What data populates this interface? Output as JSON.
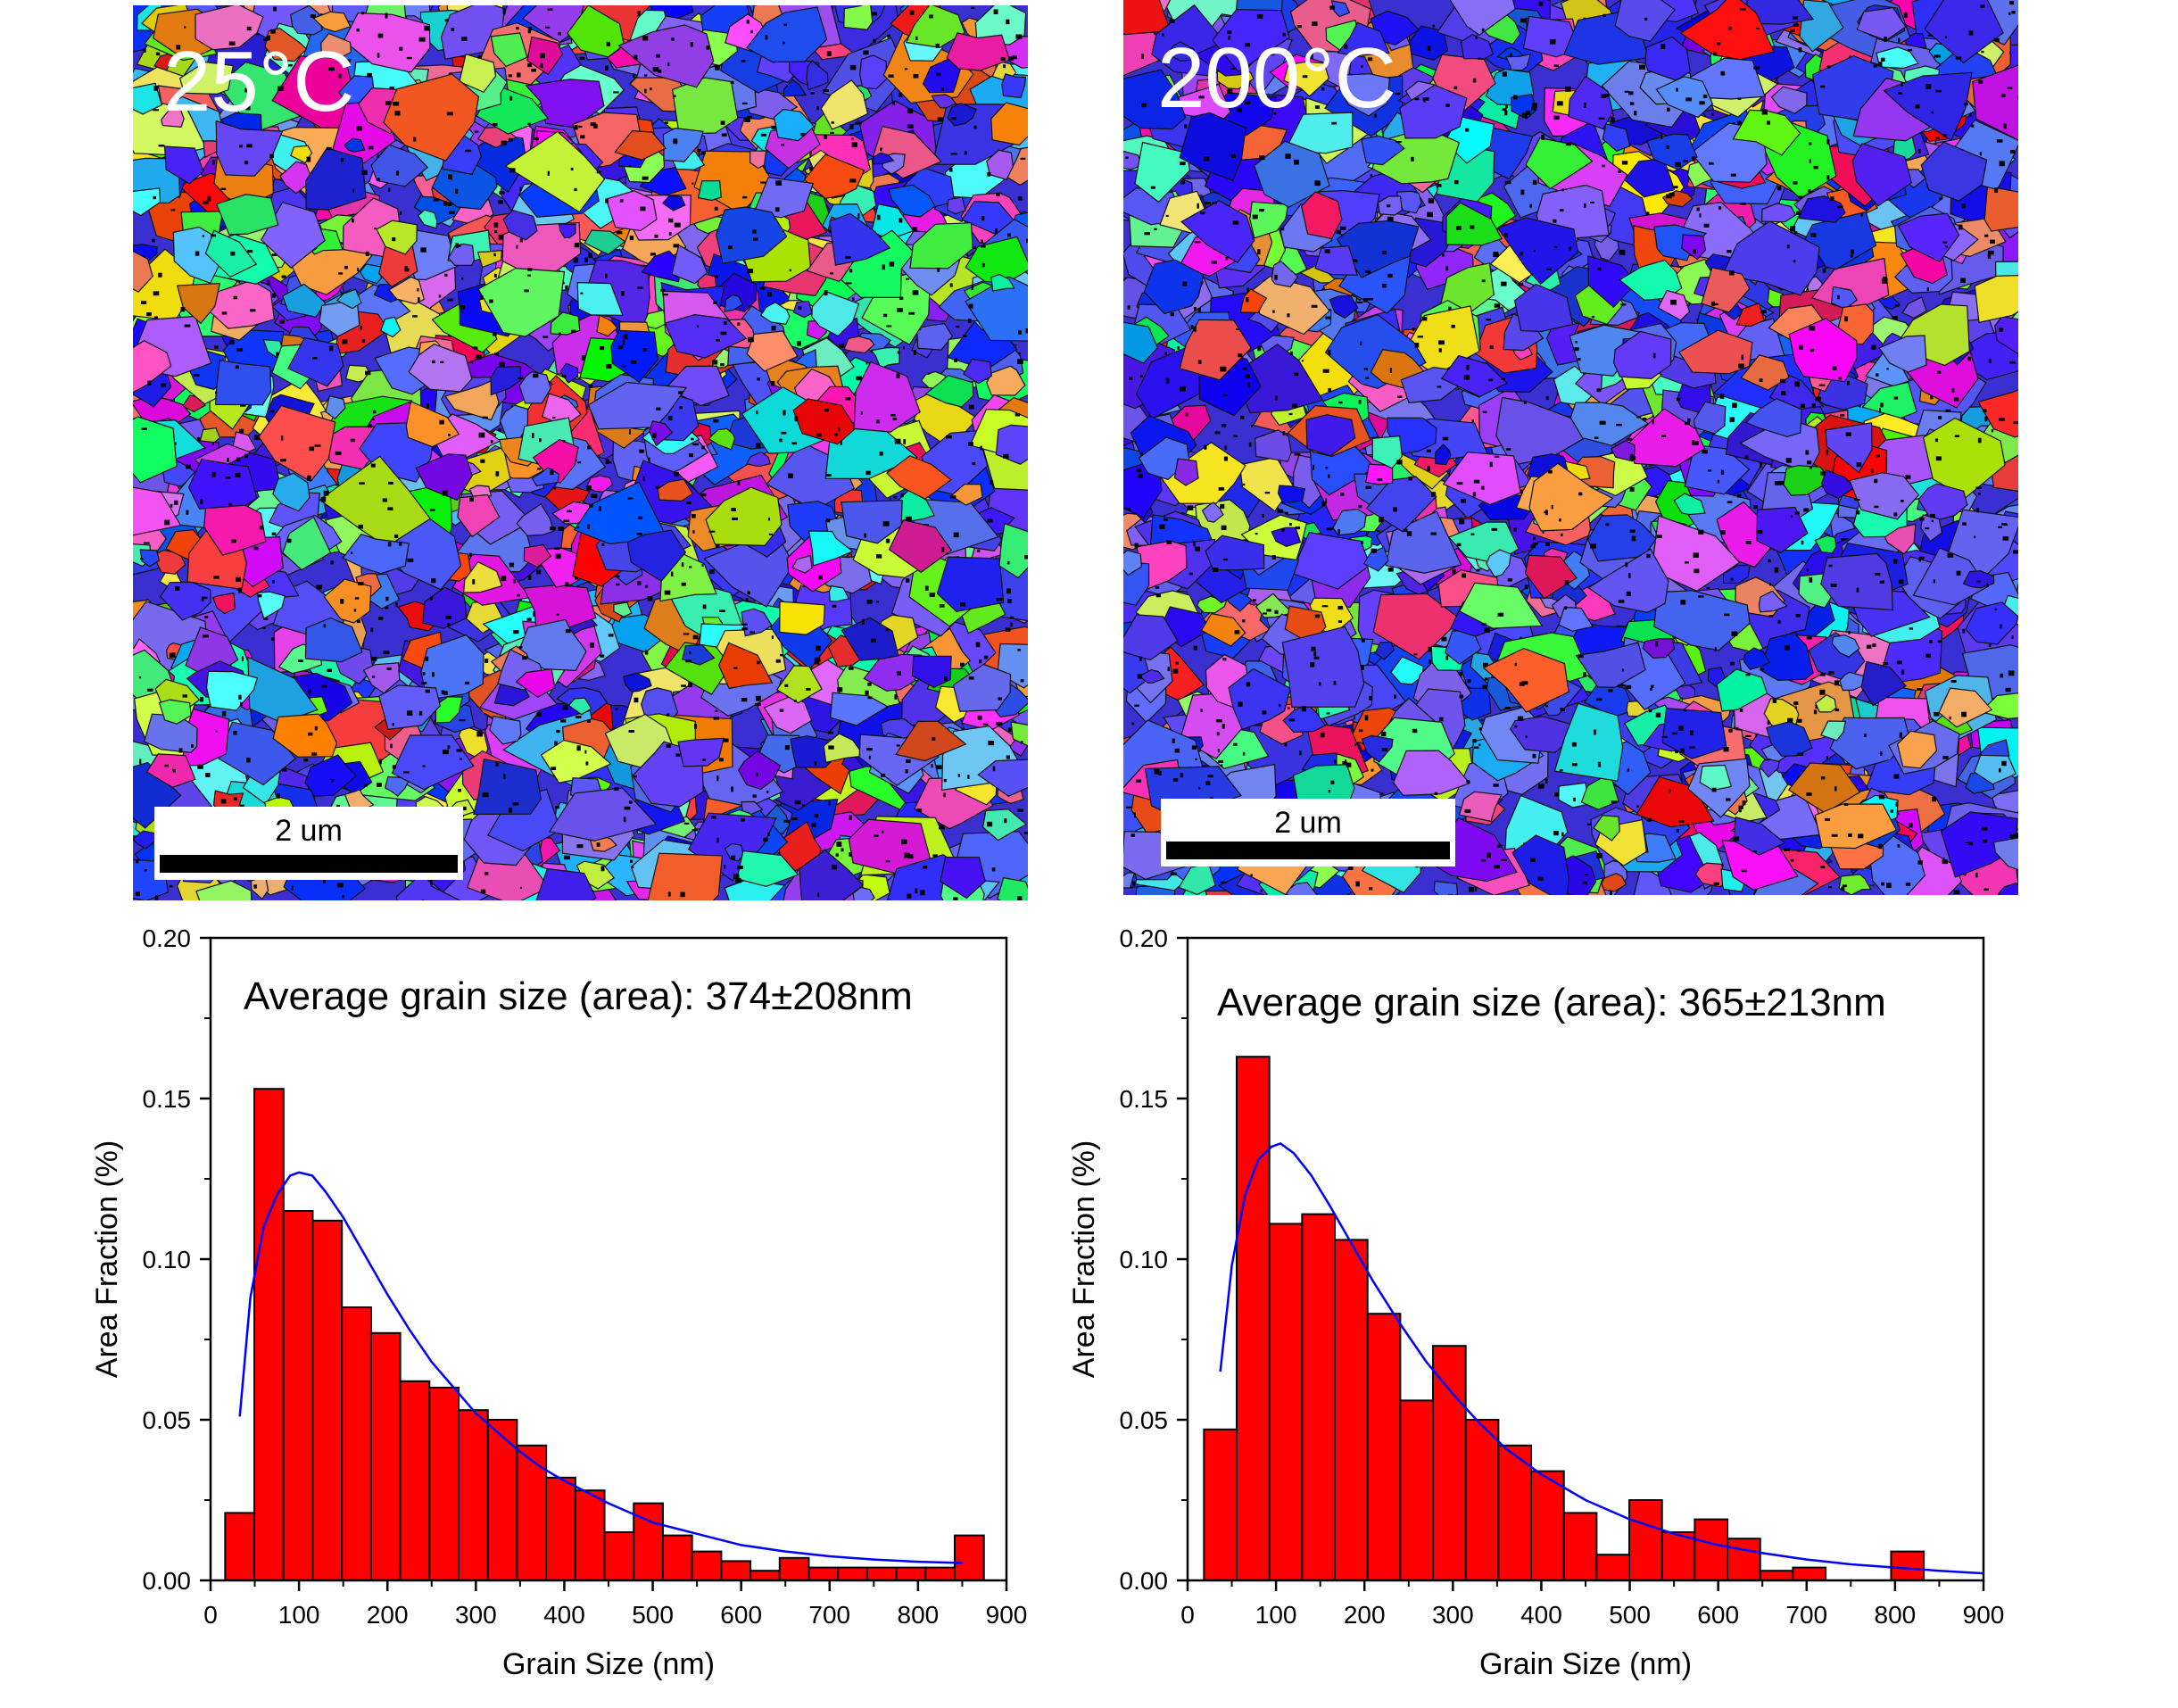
{
  "panels": [
    {
      "id": "a",
      "map_label": "25°C",
      "scalebar_label": "2 um"
    },
    {
      "id": "b",
      "map_label": "200°C",
      "scalebar_label": "2 um"
    }
  ],
  "colors": {
    "bar": "#ff0000",
    "bar_edge": "#000000",
    "fit": "#0000ff",
    "map_label": "#ffffff"
  },
  "chart_data": [
    {
      "type": "bar",
      "annotation": "Average grain size (area): 374±208nm",
      "xlabel": "Grain Size (nm)",
      "ylabel": "Area Fraction (%)",
      "xlim": [
        0,
        900
      ],
      "ylim": [
        0,
        0.2
      ],
      "xticks": [
        "0",
        "100",
        "200",
        "300",
        "400",
        "500",
        "600",
        "700",
        "800",
        "900"
      ],
      "yticks": [
        "0.00",
        "0.05",
        "0.10",
        "0.15",
        "0.20"
      ],
      "bin_width": 33,
      "bins": [
        {
          "x": 33,
          "y": 0.021
        },
        {
          "x": 66,
          "y": 0.153
        },
        {
          "x": 99,
          "y": 0.115
        },
        {
          "x": 132,
          "y": 0.112
        },
        {
          "x": 165,
          "y": 0.085
        },
        {
          "x": 198,
          "y": 0.077
        },
        {
          "x": 231,
          "y": 0.062
        },
        {
          "x": 264,
          "y": 0.06
        },
        {
          "x": 297,
          "y": 0.053
        },
        {
          "x": 330,
          "y": 0.05
        },
        {
          "x": 363,
          "y": 0.042
        },
        {
          "x": 396,
          "y": 0.032
        },
        {
          "x": 429,
          "y": 0.028
        },
        {
          "x": 462,
          "y": 0.015
        },
        {
          "x": 495,
          "y": 0.024
        },
        {
          "x": 528,
          "y": 0.014
        },
        {
          "x": 561,
          "y": 0.009
        },
        {
          "x": 594,
          "y": 0.006
        },
        {
          "x": 627,
          "y": 0.003
        },
        {
          "x": 660,
          "y": 0.007
        },
        {
          "x": 693,
          "y": 0.004
        },
        {
          "x": 726,
          "y": 0.004
        },
        {
          "x": 759,
          "y": 0.004
        },
        {
          "x": 792,
          "y": 0.004
        },
        {
          "x": 825,
          "y": 0.004
        },
        {
          "x": 858,
          "y": 0.014
        }
      ],
      "fit": [
        [
          33,
          0.051
        ],
        [
          45,
          0.088
        ],
        [
          60,
          0.11
        ],
        [
          75,
          0.12
        ],
        [
          90,
          0.126
        ],
        [
          100,
          0.127
        ],
        [
          115,
          0.126
        ],
        [
          130,
          0.121
        ],
        [
          150,
          0.113
        ],
        [
          175,
          0.101
        ],
        [
          200,
          0.089
        ],
        [
          225,
          0.078
        ],
        [
          250,
          0.068
        ],
        [
          275,
          0.06
        ],
        [
          300,
          0.052
        ],
        [
          325,
          0.046
        ],
        [
          350,
          0.04
        ],
        [
          375,
          0.035
        ],
        [
          400,
          0.031
        ],
        [
          450,
          0.024
        ],
        [
          500,
          0.018
        ],
        [
          550,
          0.0145
        ],
        [
          600,
          0.011
        ],
        [
          650,
          0.009
        ],
        [
          700,
          0.0075
        ],
        [
          750,
          0.0065
        ],
        [
          800,
          0.0058
        ],
        [
          850,
          0.0054
        ]
      ]
    },
    {
      "type": "bar",
      "annotation": "Average grain size (area): 365±213nm",
      "xlabel": "Grain Size (nm)",
      "ylabel": "Area Fraction (%)",
      "xlim": [
        0,
        900
      ],
      "ylim": [
        0,
        0.2
      ],
      "xticks": [
        "0",
        "100",
        "200",
        "300",
        "400",
        "500",
        "600",
        "700",
        "800",
        "900"
      ],
      "yticks": [
        "0.00",
        "0.05",
        "0.10",
        "0.15",
        "0.20"
      ],
      "bin_width": 37,
      "bins": [
        {
          "x": 37,
          "y": 0.047
        },
        {
          "x": 74,
          "y": 0.163
        },
        {
          "x": 111,
          "y": 0.111
        },
        {
          "x": 148,
          "y": 0.114
        },
        {
          "x": 185,
          "y": 0.106
        },
        {
          "x": 222,
          "y": 0.083
        },
        {
          "x": 259,
          "y": 0.056
        },
        {
          "x": 296,
          "y": 0.073
        },
        {
          "x": 333,
          "y": 0.05
        },
        {
          "x": 370,
          "y": 0.042
        },
        {
          "x": 407,
          "y": 0.034
        },
        {
          "x": 444,
          "y": 0.021
        },
        {
          "x": 481,
          "y": 0.008
        },
        {
          "x": 518,
          "y": 0.025
        },
        {
          "x": 555,
          "y": 0.015
        },
        {
          "x": 592,
          "y": 0.019
        },
        {
          "x": 629,
          "y": 0.013
        },
        {
          "x": 666,
          "y": 0.003
        },
        {
          "x": 703,
          "y": 0.004
        },
        {
          "x": 740,
          "y": 0.0
        },
        {
          "x": 777,
          "y": 0.0
        },
        {
          "x": 814,
          "y": 0.009
        }
      ],
      "fit": [
        [
          37,
          0.065
        ],
        [
          50,
          0.098
        ],
        [
          65,
          0.12
        ],
        [
          80,
          0.131
        ],
        [
          95,
          0.135
        ],
        [
          105,
          0.136
        ],
        [
          120,
          0.133
        ],
        [
          140,
          0.126
        ],
        [
          160,
          0.117
        ],
        [
          185,
          0.105
        ],
        [
          210,
          0.093
        ],
        [
          240,
          0.08
        ],
        [
          270,
          0.068
        ],
        [
          300,
          0.058
        ],
        [
          330,
          0.049
        ],
        [
          360,
          0.041
        ],
        [
          400,
          0.033
        ],
        [
          450,
          0.025
        ],
        [
          500,
          0.019
        ],
        [
          550,
          0.0145
        ],
        [
          600,
          0.011
        ],
        [
          650,
          0.0085
        ],
        [
          700,
          0.0065
        ],
        [
          750,
          0.005
        ],
        [
          800,
          0.004
        ],
        [
          850,
          0.003
        ],
        [
          900,
          0.0022
        ]
      ]
    }
  ]
}
